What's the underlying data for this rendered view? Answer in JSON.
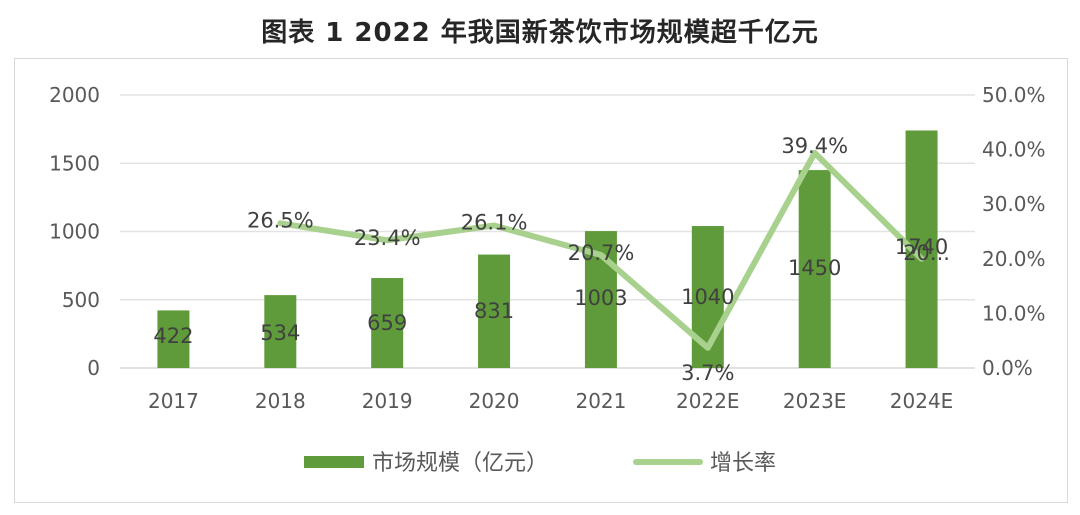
{
  "title": "图表 1 2022 年我国新茶饮市场规模超千亿元",
  "chart_data": {
    "type": "bar",
    "title": "图表 1 2022 年我国新茶饮市场规模超千亿元",
    "categories": [
      "2017",
      "2018",
      "2019",
      "2020",
      "2021",
      "2022E",
      "2023E",
      "2024E"
    ],
    "series": [
      {
        "name": "市场规模（亿元）",
        "type": "bar",
        "axis": "left",
        "values": [
          422,
          534,
          659,
          831,
          1003,
          1040,
          1450,
          1740
        ],
        "labels": [
          "422",
          "534",
          "659",
          "831",
          "1003",
          "1040",
          "1450",
          "1740"
        ],
        "color": "#5f9b3a"
      },
      {
        "name": "增长率",
        "type": "line",
        "axis": "right",
        "values": [
          null,
          26.5,
          23.4,
          26.1,
          20.7,
          3.7,
          39.4,
          20.0
        ],
        "labels": [
          null,
          "26.5%",
          "23.4%",
          "26.1%",
          "20.7%",
          "3.7%",
          "39.4%",
          "20..."
        ],
        "color": "#a9d18e"
      }
    ],
    "y_left": {
      "ylim": [
        0,
        2000
      ],
      "ticks": [
        0,
        500,
        1000,
        1500,
        2000
      ],
      "tick_labels": [
        "0",
        "500",
        "1000",
        "1500",
        "2000"
      ]
    },
    "y_right": {
      "ylim": [
        0,
        50
      ],
      "ticks": [
        0,
        10,
        20,
        30,
        40,
        50
      ],
      "tick_labels": [
        "0.0%",
        "10.0%",
        "20.0%",
        "30.0%",
        "40.0%",
        "50.0%"
      ]
    },
    "grid": true,
    "legend_position": "bottom"
  }
}
